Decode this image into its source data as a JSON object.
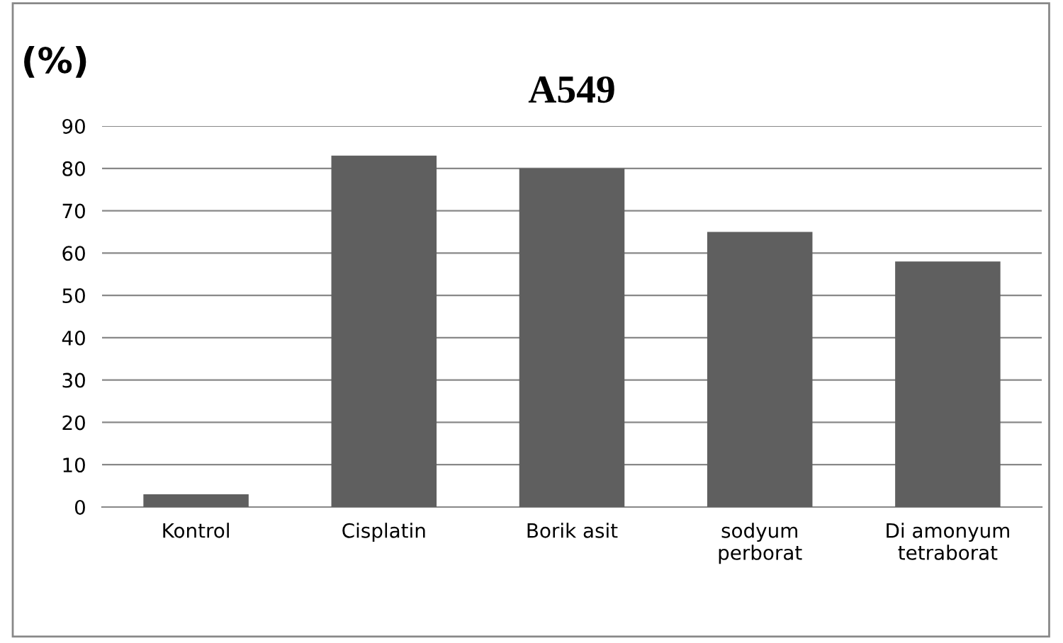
{
  "chart_data": {
    "type": "bar",
    "title": "A549",
    "ylabel": "(%)",
    "categories": [
      "Kontrol",
      "Cisplatin",
      "Borik asit",
      "sodyum\nperborat",
      "Di amonyum\ntetraborat"
    ],
    "values": [
      3,
      83,
      80,
      65,
      58
    ],
    "color": "#5f5f5f",
    "ylim": [
      0,
      90
    ],
    "yticks": [
      0,
      10,
      20,
      30,
      40,
      50,
      60,
      70,
      80,
      90
    ],
    "grid": "y"
  }
}
